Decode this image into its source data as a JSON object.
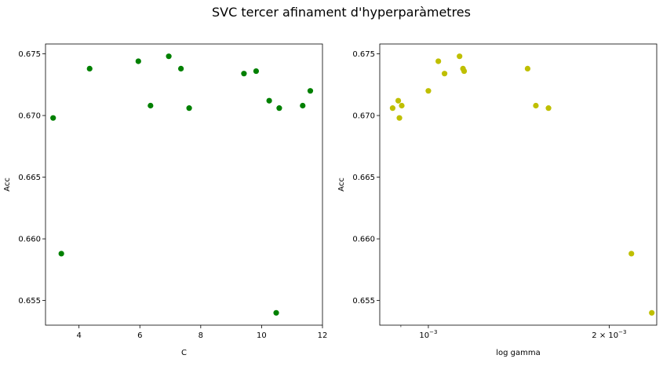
{
  "figure": {
    "title": "SVC tercer afinament d'hyperparàmetres"
  },
  "chart_data": [
    {
      "type": "scatter",
      "xlabel": "C",
      "ylabel": "Acc",
      "xlim": [
        2.9,
        12.0
      ],
      "ylim": [
        0.653,
        0.6758
      ],
      "x_scale": "linear",
      "xticks": [
        {
          "v": 4,
          "label": "4"
        },
        {
          "v": 6,
          "label": "6"
        },
        {
          "v": 8,
          "label": "8"
        },
        {
          "v": 10,
          "label": "10"
        },
        {
          "v": 12,
          "label": "12"
        }
      ],
      "yticks": [
        {
          "v": 0.655,
          "label": "0.655"
        },
        {
          "v": 0.66,
          "label": "0.660"
        },
        {
          "v": 0.665,
          "label": "0.665"
        },
        {
          "v": 0.67,
          "label": "0.670"
        },
        {
          "v": 0.675,
          "label": "0.675"
        }
      ],
      "color": "#008000",
      "grid": false,
      "points": [
        {
          "x": 3.15,
          "y": 0.6698
        },
        {
          "x": 3.42,
          "y": 0.6588
        },
        {
          "x": 4.35,
          "y": 0.6738
        },
        {
          "x": 5.95,
          "y": 0.6744
        },
        {
          "x": 6.35,
          "y": 0.6708
        },
        {
          "x": 6.95,
          "y": 0.6748
        },
        {
          "x": 7.35,
          "y": 0.6738
        },
        {
          "x": 7.62,
          "y": 0.6706
        },
        {
          "x": 9.42,
          "y": 0.6734
        },
        {
          "x": 9.82,
          "y": 0.6736
        },
        {
          "x": 10.25,
          "y": 0.6712
        },
        {
          "x": 10.48,
          "y": 0.654
        },
        {
          "x": 10.58,
          "y": 0.6706
        },
        {
          "x": 11.35,
          "y": 0.6708
        },
        {
          "x": 11.6,
          "y": 0.672
        }
      ]
    },
    {
      "type": "scatter",
      "xlabel": "log gamma",
      "ylabel": "Acc",
      "xlim": [
        0.00083,
        0.0024
      ],
      "ylim": [
        0.653,
        0.6758
      ],
      "x_scale": "log",
      "xticks": [
        {
          "v": 0.001,
          "label": "10",
          "sup": "−3"
        },
        {
          "v": 0.002,
          "label": "2 × 10",
          "sup": "−3"
        }
      ],
      "minor_xticks": [
        0.0009,
        0.0008,
        0.003
      ],
      "yticks": [
        {
          "v": 0.655,
          "label": "0.655"
        },
        {
          "v": 0.66,
          "label": "0.660"
        },
        {
          "v": 0.665,
          "label": "0.665"
        },
        {
          "v": 0.67,
          "label": "0.670"
        },
        {
          "v": 0.675,
          "label": "0.675"
        }
      ],
      "color": "#bfbf00",
      "grid": false,
      "points": [
        {
          "x": 0.000872,
          "y": 0.6706
        },
        {
          "x": 0.000891,
          "y": 0.6712
        },
        {
          "x": 0.000895,
          "y": 0.6698
        },
        {
          "x": 0.000903,
          "y": 0.6708
        },
        {
          "x": 0.001,
          "y": 0.672
        },
        {
          "x": 0.001039,
          "y": 0.6744
        },
        {
          "x": 0.001064,
          "y": 0.6734
        },
        {
          "x": 0.001127,
          "y": 0.6748
        },
        {
          "x": 0.001142,
          "y": 0.6738
        },
        {
          "x": 0.001147,
          "y": 0.6736
        },
        {
          "x": 0.001463,
          "y": 0.6738
        },
        {
          "x": 0.00151,
          "y": 0.6708
        },
        {
          "x": 0.001585,
          "y": 0.6706
        },
        {
          "x": 0.002178,
          "y": 0.6588
        },
        {
          "x": 0.002355,
          "y": 0.654
        }
      ]
    }
  ]
}
